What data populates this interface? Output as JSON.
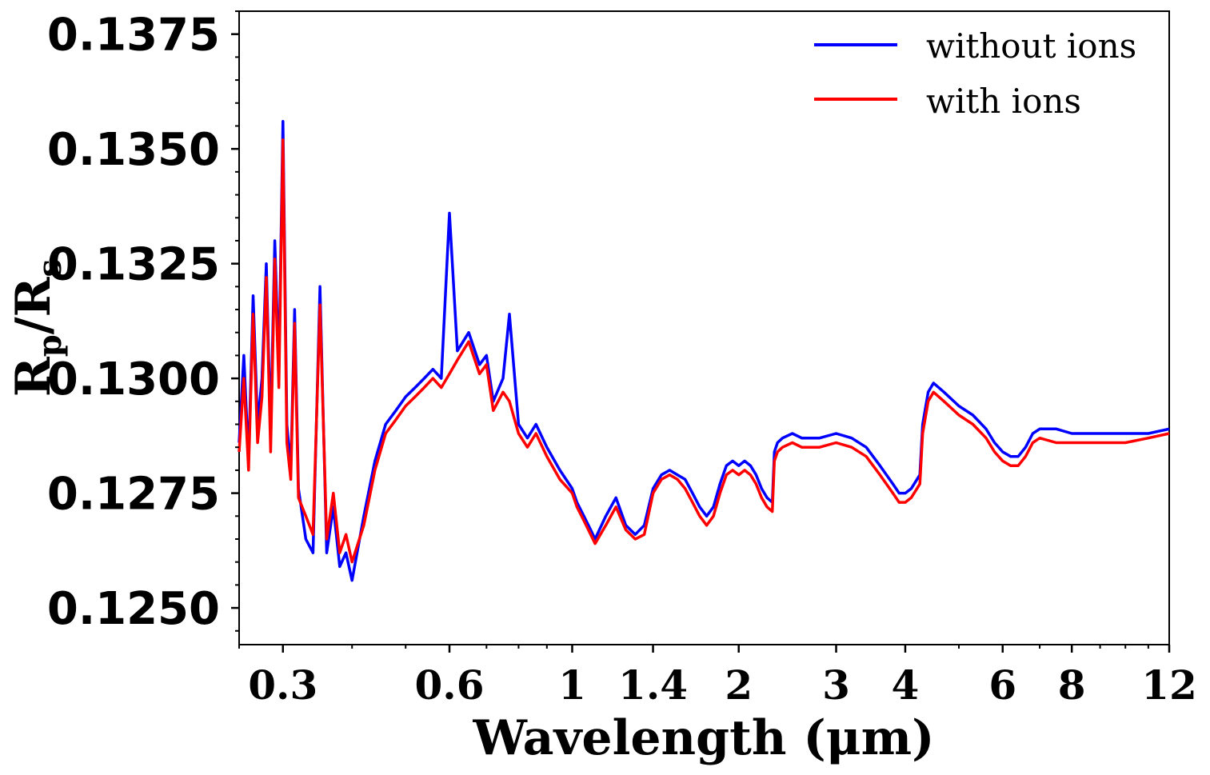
{
  "chart_data": {
    "type": "line",
    "title": "",
    "xlabel": "Wavelength (μm)",
    "ylabel_parts": {
      "r1": "R",
      "sub1": "p",
      "slash": "/",
      "r2": "R",
      "sub2": "s"
    },
    "xscale": "log",
    "xlim": [
      0.25,
      12
    ],
    "ylim": [
      0.1242,
      0.138
    ],
    "grid": false,
    "legend_position": "top-right",
    "xticks": [
      {
        "value": 0.3,
        "label": "0.3"
      },
      {
        "value": 0.6,
        "label": "0.6"
      },
      {
        "value": 1,
        "label": "1"
      },
      {
        "value": 1.4,
        "label": "1.4"
      },
      {
        "value": 2,
        "label": "2"
      },
      {
        "value": 3,
        "label": "3"
      },
      {
        "value": 4,
        "label": "4"
      },
      {
        "value": 6,
        "label": "6"
      },
      {
        "value": 8,
        "label": "8"
      },
      {
        "value": 12,
        "label": "12"
      }
    ],
    "yticks": [
      {
        "value": 0.125,
        "label": "0.1250"
      },
      {
        "value": 0.1275,
        "label": "0.1275"
      },
      {
        "value": 0.13,
        "label": "0.1300"
      },
      {
        "value": 0.1325,
        "label": "0.1325"
      },
      {
        "value": 0.135,
        "label": "0.1350"
      },
      {
        "value": 0.1375,
        "label": "0.1375"
      }
    ],
    "series": [
      {
        "name": "without ions",
        "color": "#0000ff",
        "x": [
          0.25,
          0.255,
          0.26,
          0.265,
          0.27,
          0.275,
          0.28,
          0.285,
          0.29,
          0.295,
          0.3,
          0.305,
          0.31,
          0.315,
          0.32,
          0.33,
          0.34,
          0.35,
          0.36,
          0.37,
          0.38,
          0.39,
          0.4,
          0.42,
          0.44,
          0.46,
          0.48,
          0.5,
          0.52,
          0.54,
          0.56,
          0.58,
          0.6,
          0.62,
          0.65,
          0.68,
          0.7,
          0.72,
          0.75,
          0.77,
          0.8,
          0.83,
          0.86,
          0.9,
          0.95,
          1.0,
          1.02,
          1.05,
          1.08,
          1.1,
          1.15,
          1.2,
          1.25,
          1.3,
          1.35,
          1.4,
          1.45,
          1.5,
          1.55,
          1.6,
          1.65,
          1.7,
          1.75,
          1.8,
          1.85,
          1.9,
          1.95,
          2.0,
          2.05,
          2.1,
          2.15,
          2.2,
          2.25,
          2.3,
          2.32,
          2.35,
          2.4,
          2.5,
          2.6,
          2.8,
          3.0,
          3.2,
          3.4,
          3.6,
          3.8,
          3.9,
          4.0,
          4.1,
          4.2,
          4.25,
          4.3,
          4.4,
          4.5,
          4.7,
          5.0,
          5.3,
          5.6,
          5.8,
          6.0,
          6.2,
          6.4,
          6.6,
          6.8,
          7.0,
          7.5,
          8.0,
          9.0,
          10.0,
          11.0,
          12.0
        ],
        "y": [
          0.1286,
          0.1305,
          0.1282,
          0.1318,
          0.129,
          0.13,
          0.1325,
          0.1288,
          0.133,
          0.1302,
          0.1356,
          0.129,
          0.128,
          0.1315,
          0.1276,
          0.1265,
          0.1262,
          0.132,
          0.1262,
          0.1272,
          0.1259,
          0.1262,
          0.1256,
          0.127,
          0.1282,
          0.129,
          0.1293,
          0.1296,
          0.1298,
          0.13,
          0.1302,
          0.13,
          0.1336,
          0.1306,
          0.131,
          0.1303,
          0.1305,
          0.1295,
          0.13,
          0.1314,
          0.129,
          0.1287,
          0.129,
          0.1285,
          0.128,
          0.1276,
          0.1273,
          0.127,
          0.1267,
          0.1265,
          0.127,
          0.1274,
          0.1268,
          0.1266,
          0.1268,
          0.1276,
          0.1279,
          0.128,
          0.1279,
          0.1278,
          0.1275,
          0.1272,
          0.127,
          0.1272,
          0.1277,
          0.1281,
          0.1282,
          0.1281,
          0.1282,
          0.1281,
          0.1279,
          0.1276,
          0.1274,
          0.1273,
          0.1284,
          0.1286,
          0.1287,
          0.1288,
          0.1287,
          0.1287,
          0.1288,
          0.1287,
          0.1285,
          0.1281,
          0.1277,
          0.1275,
          0.1275,
          0.1276,
          0.1278,
          0.1279,
          0.129,
          0.1297,
          0.1299,
          0.1297,
          0.1294,
          0.1292,
          0.1289,
          0.1286,
          0.1284,
          0.1283,
          0.1283,
          0.1285,
          0.1288,
          0.1289,
          0.1289,
          0.1288,
          0.1288,
          0.1288,
          0.1288,
          0.1289
        ]
      },
      {
        "name": "with ions",
        "color": "#ff0000",
        "x": [
          0.25,
          0.255,
          0.26,
          0.265,
          0.27,
          0.275,
          0.28,
          0.285,
          0.29,
          0.295,
          0.3,
          0.305,
          0.31,
          0.315,
          0.32,
          0.33,
          0.34,
          0.35,
          0.36,
          0.37,
          0.38,
          0.39,
          0.4,
          0.42,
          0.44,
          0.46,
          0.48,
          0.5,
          0.52,
          0.54,
          0.56,
          0.58,
          0.6,
          0.62,
          0.65,
          0.68,
          0.7,
          0.72,
          0.75,
          0.77,
          0.8,
          0.83,
          0.86,
          0.9,
          0.95,
          1.0,
          1.02,
          1.05,
          1.08,
          1.1,
          1.15,
          1.2,
          1.25,
          1.3,
          1.35,
          1.4,
          1.45,
          1.5,
          1.55,
          1.6,
          1.65,
          1.7,
          1.75,
          1.8,
          1.85,
          1.9,
          1.95,
          2.0,
          2.05,
          2.1,
          2.15,
          2.2,
          2.25,
          2.3,
          2.32,
          2.35,
          2.4,
          2.5,
          2.6,
          2.8,
          3.0,
          3.2,
          3.4,
          3.6,
          3.8,
          3.9,
          4.0,
          4.1,
          4.2,
          4.25,
          4.3,
          4.4,
          4.5,
          4.7,
          5.0,
          5.3,
          5.6,
          5.8,
          6.0,
          6.2,
          6.4,
          6.6,
          6.8,
          7.0,
          7.5,
          8.0,
          9.0,
          10.0,
          11.0,
          12.0
        ],
        "y": [
          0.1284,
          0.13,
          0.128,
          0.1314,
          0.1286,
          0.1296,
          0.1322,
          0.1284,
          0.1326,
          0.1298,
          0.1352,
          0.1286,
          0.1278,
          0.1312,
          0.1274,
          0.127,
          0.1266,
          0.1316,
          0.1265,
          0.1275,
          0.1262,
          0.1266,
          0.126,
          0.1268,
          0.128,
          0.1288,
          0.1291,
          0.1294,
          0.1296,
          0.1298,
          0.13,
          0.1298,
          0.1301,
          0.1304,
          0.1308,
          0.1301,
          0.1303,
          0.1293,
          0.1297,
          0.1295,
          0.1288,
          0.1285,
          0.1288,
          0.1283,
          0.1278,
          0.1275,
          0.1272,
          0.1269,
          0.1266,
          0.1264,
          0.1268,
          0.1272,
          0.1267,
          0.1265,
          0.1266,
          0.1275,
          0.1278,
          0.1279,
          0.1278,
          0.1276,
          0.1273,
          0.127,
          0.1268,
          0.127,
          0.1275,
          0.1279,
          0.128,
          0.1279,
          0.128,
          0.1279,
          0.1277,
          0.1274,
          0.1272,
          0.1271,
          0.1282,
          0.1284,
          0.1285,
          0.1286,
          0.1285,
          0.1285,
          0.1286,
          0.1285,
          0.1283,
          0.1279,
          0.1275,
          0.1273,
          0.1273,
          0.1274,
          0.1276,
          0.1277,
          0.1288,
          0.1295,
          0.1297,
          0.1295,
          0.1292,
          0.129,
          0.1287,
          0.1284,
          0.1282,
          0.1281,
          0.1281,
          0.1283,
          0.1286,
          0.1287,
          0.1286,
          0.1286,
          0.1286,
          0.1286,
          0.1287,
          0.1288
        ]
      }
    ]
  }
}
